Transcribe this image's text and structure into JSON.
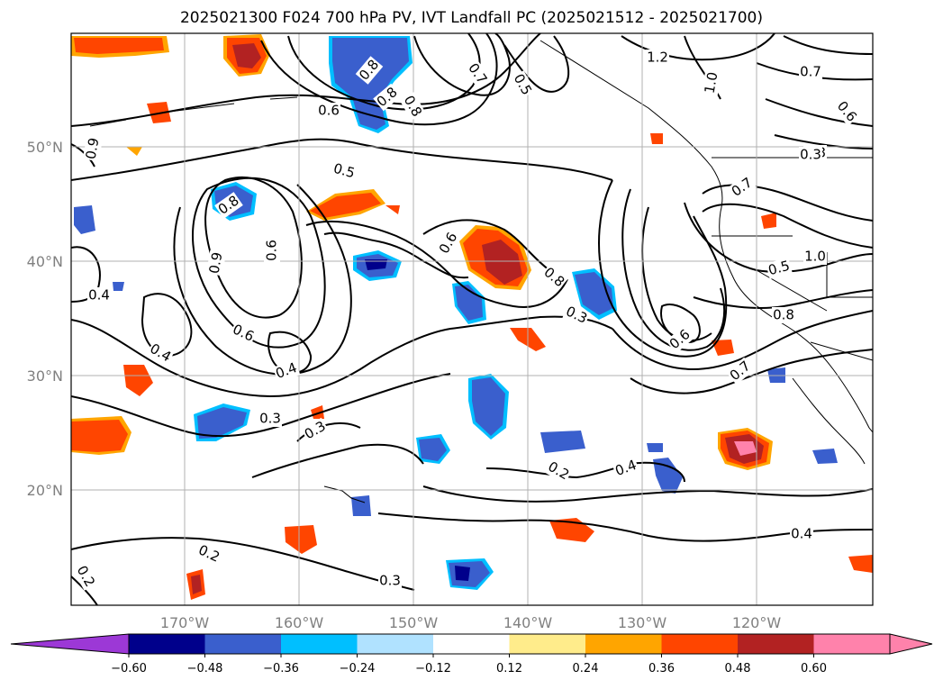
{
  "title": "2025021300 F024 700 hPa PV, IVT Landfall PC (2025021512 - 2025021700)",
  "lat_labels": [
    "50°N",
    "40°N",
    "30°N",
    "20°N"
  ],
  "lon_labels": [
    "170°W",
    "160°W",
    "150°W",
    "140°W",
    "130°W",
    "120°W"
  ],
  "colorbar": {
    "ticks": [
      "−0.60",
      "−0.48",
      "−0.36",
      "−0.24",
      "−0.12",
      "0.12",
      "0.24",
      "0.36",
      "0.48",
      "0.60"
    ],
    "colors": [
      "#9c38d6",
      "#00008b",
      "#3a5fcd",
      "#00bfff",
      "#b0e2ff",
      "#ffffff",
      "#ffec8b",
      "#ffa500",
      "#ff4500",
      "#b22222",
      "#ff82ab",
      "#ff82ab"
    ]
  },
  "contour_labels": [
    "0.8",
    "0.7",
    "0.5",
    "1.2",
    "0.8",
    "1.0",
    "0.8",
    "0.7",
    "0.6",
    "0.6",
    "0.9",
    "0.8",
    "0.5",
    "0.8",
    "0.6",
    "1.0",
    "0.9",
    "0.6",
    "0.7",
    "0.4",
    "0.5",
    "0.4",
    "0.8",
    "0.6",
    "0.3",
    "0.8",
    "0.6",
    "0.4",
    "0.7",
    "0.3",
    "0.3",
    "0.2",
    "0.4",
    "0.4",
    "0.2",
    "0.2",
    "0.3",
    "0.3"
  ],
  "fill_colors": {
    "neg_light": "#b0e2ff",
    "neg_cyan": "#00bfff",
    "neg_mid": "#3a5fcd",
    "neg_dark": "#00008b",
    "pos_yellow": "#ffec8b",
    "pos_orange": "#ffa500",
    "pos_red": "#ff4500",
    "pos_dark": "#b22222",
    "pos_pink": "#ff82ab"
  }
}
